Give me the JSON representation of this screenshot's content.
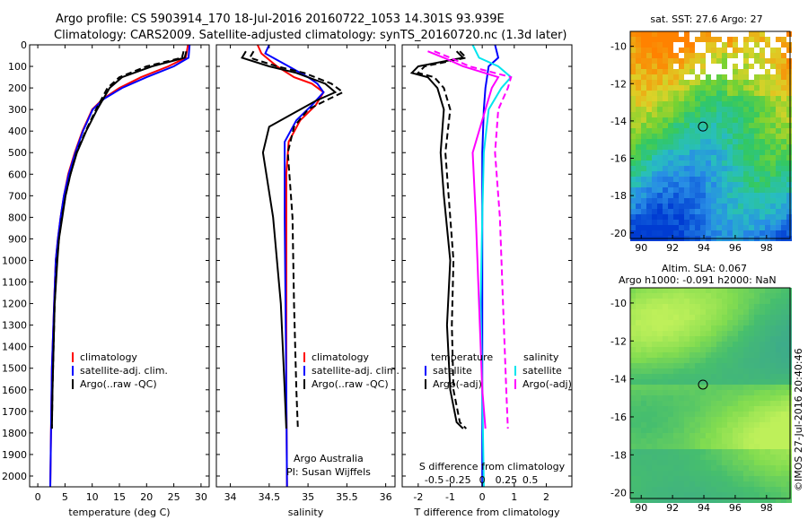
{
  "header": {
    "line1": "Argo profile: CS 5903914_170 18-Jul-2016 20160722_1053 14.301S 93.939E",
    "line2": "Climatology: CARS2009. Satellite-adjusted climatology: synTS_20160720.nc (1.3d later)"
  },
  "side_label": "©IMOS 27-Jul-2016 20:40:46",
  "colors": {
    "climatology": "#ff0000",
    "satellite": "#0000ff",
    "argo": "#000000",
    "salinity_diff": "#ff00ff",
    "salinity_sat": "#00e5ee"
  },
  "chart_data": [
    {
      "id": "temperature",
      "type": "line",
      "xlabel": "temperature (deg C)",
      "ylabel": "",
      "xlim": [
        -1.5,
        31.5
      ],
      "ylim": [
        2050,
        0
      ],
      "xticks": [
        0,
        5,
        10,
        15,
        20,
        25,
        30
      ],
      "yticks": [
        0,
        100,
        200,
        300,
        400,
        500,
        600,
        700,
        800,
        900,
        1000,
        1100,
        1200,
        1300,
        1400,
        1500,
        1600,
        1700,
        1800,
        1900,
        2000
      ],
      "legend": [
        "climatology",
        "satellite-adj. clim.",
        "Argo(..raw -QC)"
      ],
      "series": [
        {
          "name": "climatology",
          "color": "#ff0000",
          "dash": "",
          "x": [
            27.6,
            27.2,
            24,
            19,
            15,
            12,
            10,
            8.2,
            6.8,
            5.6,
            4.8,
            4.2,
            3.7,
            3.3,
            3.0,
            2.6,
            2.3
          ],
          "y": [
            0,
            60,
            100,
            150,
            200,
            250,
            300,
            400,
            500,
            600,
            700,
            800,
            900,
            1000,
            1200,
            1500,
            2050
          ]
        },
        {
          "name": "satellite-adj. clim.",
          "color": "#0000ff",
          "dash": "",
          "x": [
            27.9,
            27.7,
            25,
            20,
            15.5,
            12.2,
            10.1,
            8.3,
            6.9,
            5.7,
            4.8,
            4.2,
            3.7,
            3.3,
            3.0,
            2.6,
            2.3
          ],
          "y": [
            0,
            60,
            100,
            150,
            200,
            250,
            300,
            400,
            500,
            600,
            700,
            800,
            900,
            1000,
            1200,
            1500,
            2050
          ]
        },
        {
          "name": "Argo (raw)",
          "color": "#000000",
          "dash": "",
          "x": [
            27.3,
            27,
            21,
            15.5,
            13.2,
            10.9,
            8.9,
            7.2,
            6.0,
            5.1,
            4.5,
            3.9,
            3.6,
            3.1,
            2.7,
            2.6
          ],
          "y": [
            30,
            60,
            100,
            150,
            200,
            300,
            400,
            500,
            600,
            700,
            800,
            900,
            1000,
            1200,
            1600,
            1780
          ]
        },
        {
          "name": "Argo (-QC)",
          "color": "#000000",
          "dash": "7,4",
          "x": [
            26.8,
            26.5,
            20,
            15,
            12.8,
            10.7,
            8.8,
            7.1,
            6.0,
            5.1,
            4.4,
            3.9,
            3.5,
            3.1,
            2.7,
            2.6
          ],
          "y": [
            30,
            60,
            100,
            150,
            200,
            300,
            400,
            500,
            600,
            700,
            800,
            900,
            1000,
            1200,
            1600,
            1780
          ]
        }
      ]
    },
    {
      "id": "salinity",
      "type": "line",
      "xlabel": "salinity",
      "ylabel": "",
      "xlim": [
        33.82,
        36.12
      ],
      "ylim": [
        2050,
        0
      ],
      "xticks": [
        34,
        34.5,
        35,
        35.5,
        36
      ],
      "legend": [
        "climatology",
        "satellite-adj. clim.",
        "Argo(..raw -QC)"
      ],
      "annotations": [
        "Argo Australia",
        "PI: Susan Wijffels"
      ],
      "series": [
        {
          "name": "climatology",
          "color": "#ff0000",
          "dash": "",
          "x": [
            34.35,
            34.4,
            34.6,
            34.82,
            35.05,
            35.2,
            35.1,
            34.9,
            34.75,
            34.72,
            34.72,
            34.72,
            34.72,
            34.73
          ],
          "y": [
            0,
            40,
            100,
            150,
            180,
            220,
            280,
            350,
            450,
            600,
            800,
            1200,
            1600,
            2050
          ]
        },
        {
          "name": "satellite-adj. clim.",
          "color": "#0000ff",
          "dash": "",
          "x": [
            34.5,
            34.45,
            34.75,
            35.0,
            35.12,
            35.2,
            35.05,
            34.85,
            34.7,
            34.7,
            34.7,
            34.71,
            34.72,
            34.73
          ],
          "y": [
            0,
            40,
            100,
            150,
            180,
            220,
            280,
            350,
            450,
            600,
            800,
            1200,
            1600,
            2050
          ]
        },
        {
          "name": "Argo (raw)",
          "color": "#000000",
          "dash": "",
          "x": [
            34.2,
            34.15,
            34.5,
            34.85,
            35.22,
            35.35,
            35.1,
            34.9,
            34.5,
            34.42,
            34.55,
            34.65,
            34.7,
            34.72
          ],
          "y": [
            30,
            60,
            100,
            130,
            180,
            220,
            260,
            300,
            380,
            500,
            800,
            1200,
            1600,
            1780
          ]
        },
        {
          "name": "Argo (-QC)",
          "color": "#000000",
          "dash": "7,4",
          "x": [
            34.3,
            34.25,
            34.6,
            34.95,
            35.3,
            35.45,
            35.22,
            35.0,
            34.82,
            34.74,
            34.8,
            34.82,
            34.85,
            34.87
          ],
          "y": [
            30,
            60,
            100,
            130,
            180,
            220,
            260,
            300,
            380,
            500,
            800,
            1200,
            1600,
            1780
          ]
        }
      ]
    },
    {
      "id": "difference",
      "type": "line",
      "xlabel": "T difference from climatology",
      "xlabel2": "S difference from climatology",
      "xlim": [
        -2.5,
        2.8
      ],
      "ylim": [
        2050,
        0
      ],
      "xticks": [
        -2,
        -1,
        0,
        1,
        2
      ],
      "xticks_S": [
        "-0.5",
        "-0.25",
        "0",
        "0.25",
        "0.5"
      ],
      "legend": {
        "temperature": [
          "satellite",
          "Argo(-adj)"
        ],
        "salinity": [
          "satellite",
          "Argo(-adj)"
        ]
      },
      "legend_titles": {
        "temperature": "temperature",
        "salinity": "salinity"
      },
      "series": [
        {
          "name": "T satellite",
          "color": "#0000ff",
          "dash": "",
          "x": [
            0.4,
            0.5,
            0.2,
            0.1,
            0.05,
            0.0,
            0.0,
            0.0,
            0.0,
            0.0
          ],
          "y": [
            0,
            60,
            100,
            200,
            300,
            500,
            800,
            1200,
            1600,
            2050
          ]
        },
        {
          "name": "T Argo (raw)",
          "color": "#000000",
          "dash": "",
          "x": [
            -0.8,
            -0.6,
            -2.0,
            -2.2,
            -1.7,
            -1.4,
            -1.2,
            -1.3,
            -1.2,
            -1.0,
            -1.1,
            -1.0,
            -0.8,
            -0.6
          ],
          "y": [
            30,
            60,
            100,
            130,
            150,
            200,
            300,
            500,
            700,
            1000,
            1300,
            1600,
            1750,
            1780
          ]
        },
        {
          "name": "T Argo (-adj)",
          "color": "#000000",
          "dash": "7,4",
          "x": [
            -0.7,
            -0.5,
            -1.8,
            -2.0,
            -1.5,
            -1.2,
            -1.0,
            -1.15,
            -1.05,
            -0.9,
            -0.95,
            -0.9,
            -0.7,
            -0.5
          ],
          "y": [
            30,
            60,
            100,
            130,
            150,
            200,
            300,
            500,
            700,
            1000,
            1300,
            1600,
            1750,
            1780
          ]
        },
        {
          "name": "S satellite",
          "color": "#00e5ee",
          "dash": "",
          "x": [
            -0.3,
            -0.1,
            0.5,
            0.9,
            0.6,
            0.2,
            0.05,
            0.0,
            -0.05,
            0.0,
            0.05
          ],
          "y": [
            0,
            60,
            100,
            150,
            200,
            300,
            500,
            800,
            1200,
            1600,
            2050
          ]
        },
        {
          "name": "S Argo (raw)",
          "color": "#ff00ff",
          "dash": "",
          "x": [
            -1.7,
            -1.2,
            -0.6,
            0.5,
            0.3,
            0.1,
            -0.3,
            -0.2,
            -0.1,
            0.0,
            0.1
          ],
          "y": [
            30,
            60,
            100,
            150,
            200,
            300,
            500,
            800,
            1200,
            1600,
            1780
          ]
        },
        {
          "name": "S Argo (-adj)",
          "color": "#ff00ff",
          "dash": "7,4",
          "x": [
            -1.5,
            -1.0,
            -0.4,
            0.9,
            0.8,
            0.5,
            0.4,
            0.55,
            0.65,
            0.75,
            0.8
          ],
          "y": [
            30,
            60,
            100,
            150,
            200,
            300,
            500,
            800,
            1200,
            1600,
            1780
          ]
        }
      ]
    },
    {
      "id": "sst-map",
      "type": "heatmap",
      "title": "sat. SST: 27.6 Argo: 27",
      "xticks": [
        90,
        92,
        94,
        96,
        98
      ],
      "yticks": [
        -10,
        -12,
        -14,
        -16,
        -18,
        -20
      ],
      "xlim": [
        89.3,
        99.5
      ],
      "ylim": [
        -20.3,
        -9.2
      ],
      "marker": {
        "lon": 93.94,
        "lat": -14.3
      }
    },
    {
      "id": "sla-map",
      "type": "heatmap",
      "title": "Altim. SLA: 0.067",
      "subtitle": "Argo h1000: -0.091 h2000: NaN",
      "xticks": [
        90,
        92,
        94,
        96,
        98
      ],
      "yticks": [
        -10,
        -12,
        -14,
        -16,
        -18,
        -20
      ],
      "xlim": [
        89.3,
        99.5
      ],
      "ylim": [
        -20.3,
        -9.2
      ],
      "marker": {
        "lon": 93.94,
        "lat": -14.3
      }
    }
  ]
}
